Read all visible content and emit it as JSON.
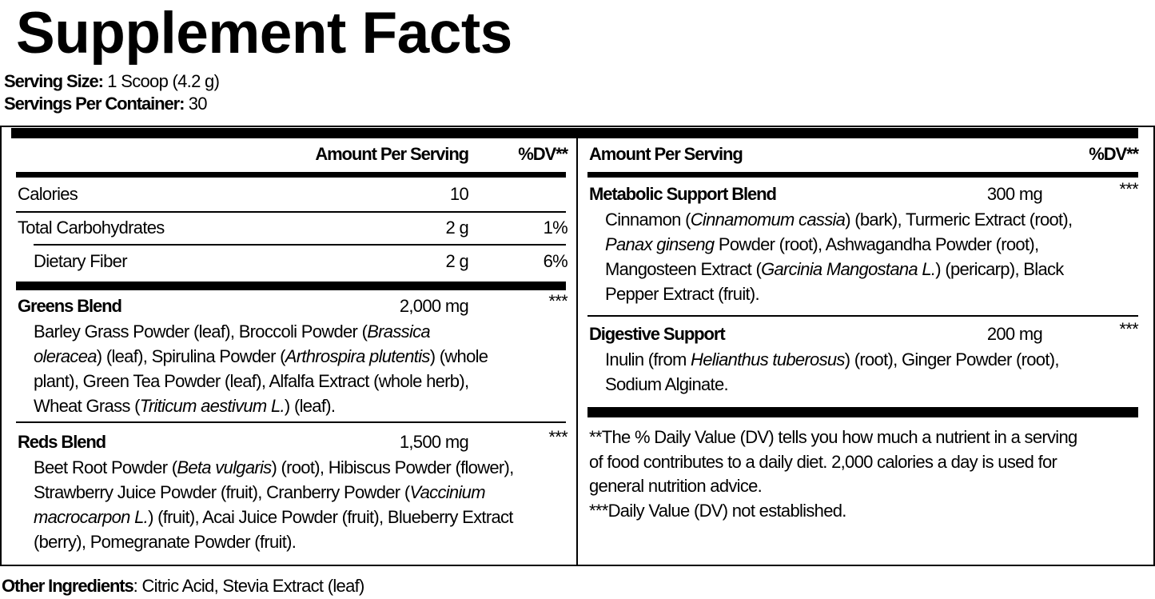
{
  "title": "Supplement Facts",
  "serving": {
    "size_label": "Serving Size:",
    "size_value": " 1 Scoop (4.2 g)",
    "per_container_label": "Servings Per Container:",
    "per_container_value": " 30"
  },
  "left_header": {
    "amount": "Amount Per Serving",
    "dv": "%DV**"
  },
  "right_header": {
    "amount": "Amount Per Serving",
    "dv": "%DV**"
  },
  "nutrients": [
    {
      "name": "Calories",
      "amount": "10",
      "dv": ""
    },
    {
      "name": "Total Carbohydrates",
      "amount": "2 g",
      "dv": "1%"
    },
    {
      "name": "Dietary Fiber",
      "amount": "2 g",
      "dv": "6%"
    }
  ],
  "blends": [
    {
      "name": "Greens Blend",
      "amount": "2,000 mg",
      "dv": "***",
      "lines": [
        [
          [
            "Barley Grass Powder (leaf), Broccoli Powder (",
            0
          ],
          [
            "Brassica",
            1
          ]
        ],
        [
          [
            "oleracea",
            1
          ],
          [
            ") (leaf), Spirulina Powder (",
            0
          ],
          [
            "Arthrospira plutentis",
            1
          ],
          [
            ") (whole",
            0
          ]
        ],
        [
          [
            "plant), Green Tea Powder (leaf), Alfalfa Extract (whole herb),",
            0
          ]
        ],
        [
          [
            "Wheat Grass (",
            0
          ],
          [
            "Triticum aestivum L.",
            1
          ],
          [
            ") (leaf).",
            0
          ]
        ]
      ]
    },
    {
      "name": "Reds Blend",
      "amount": "1,500 mg",
      "dv": "***",
      "lines": [
        [
          [
            "Beet Root Powder (",
            0
          ],
          [
            "Beta vulgaris",
            1
          ],
          [
            ") (root), Hibiscus Powder (flower),",
            0
          ]
        ],
        [
          [
            "Strawberry Juice Powder (fruit), Cranberry Powder (",
            0
          ],
          [
            "Vaccinium",
            1
          ]
        ],
        [
          [
            "macrocarpon L.",
            1
          ],
          [
            ") (fruit), Acai Juice Powder (fruit), Blueberry Extract",
            0
          ]
        ],
        [
          [
            "(berry), Pomegranate Powder (fruit).",
            0
          ]
        ]
      ]
    },
    {
      "name": "Metabolic Support Blend",
      "amount": "300 mg",
      "dv": "***",
      "lines": [
        [
          [
            "Cinnamon (",
            0
          ],
          [
            "Cinnamomum cassia",
            1
          ],
          [
            ") (bark), Turmeric Extract (root),",
            0
          ]
        ],
        [
          [
            "Panax ginseng",
            1
          ],
          [
            " Powder (root), Ashwagandha Powder (root),",
            0
          ]
        ],
        [
          [
            "Mangosteen Extract (",
            0
          ],
          [
            "Garcinia Mangostana L.",
            1
          ],
          [
            ") (pericarp), Black",
            0
          ]
        ],
        [
          [
            "Pepper Extract (fruit).",
            0
          ]
        ]
      ]
    },
    {
      "name": "Digestive Support",
      "amount": "200 mg",
      "dv": "***",
      "lines": [
        [
          [
            "Inulin (from ",
            0
          ],
          [
            "Helianthus tuberosus",
            1
          ],
          [
            ") (root), Ginger Powder (root),",
            0
          ]
        ],
        [
          [
            "Sodium Alginate.",
            0
          ]
        ]
      ]
    }
  ],
  "footnotes": [
    "**The % Daily Value (DV) tells you how much a nutrient in a serving",
    "of food contributes to a daily diet. 2,000 calories a day is used for",
    "general nutrition advice.",
    "***Daily Value (DV) not established."
  ],
  "other_ingredients": {
    "label": "Other Ingredients",
    "value": ": Citric Acid, Stevia Extract (leaf)"
  }
}
